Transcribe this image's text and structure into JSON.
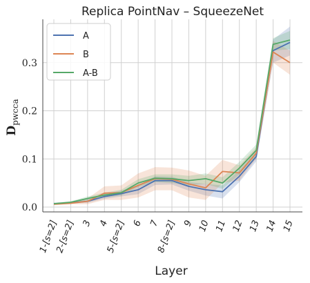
{
  "chart_data": {
    "type": "line",
    "title": "Replica PointNav – SqueezeNet",
    "xlabel": "Layer",
    "ylabel": "D",
    "ylabel_sub": "pwcca",
    "x_tick_labels": [
      "1-[s=2]",
      "2-[s=2]",
      "3",
      "4",
      "5-[s=2]",
      "6",
      "7",
      "8-[s=2]",
      "9",
      "10",
      "11",
      "12",
      "13",
      "14",
      "15"
    ],
    "x_positions": [
      1,
      2,
      3,
      4,
      5,
      6,
      7,
      8,
      9,
      10,
      11,
      12,
      13,
      14,
      15
    ],
    "ylim": [
      -0.01,
      0.39
    ],
    "yticks": [
      0.0,
      0.1,
      0.2,
      0.3
    ],
    "ytick_labels": [
      "0.0",
      "0.1",
      "0.2",
      "0.3"
    ],
    "grid": true,
    "legend_position": "top-left",
    "series": [
      {
        "name": "A",
        "color": "#4c72b0",
        "values": [
          0.007,
          0.009,
          0.012,
          0.022,
          0.028,
          0.036,
          0.055,
          0.055,
          0.043,
          0.036,
          0.032,
          0.064,
          0.105,
          0.325,
          0.342
        ],
        "lower": [
          0.005,
          0.007,
          0.009,
          0.017,
          0.022,
          0.027,
          0.046,
          0.047,
          0.034,
          0.024,
          0.018,
          0.052,
          0.095,
          0.3,
          0.315
        ],
        "upper": [
          0.009,
          0.011,
          0.016,
          0.028,
          0.034,
          0.045,
          0.064,
          0.063,
          0.052,
          0.048,
          0.045,
          0.077,
          0.116,
          0.348,
          0.375
        ]
      },
      {
        "name": "B",
        "color": "#dd8452",
        "values": [
          0.006,
          0.008,
          0.012,
          0.029,
          0.03,
          0.045,
          0.059,
          0.058,
          0.048,
          0.04,
          0.074,
          0.071,
          0.112,
          0.322,
          0.3
        ],
        "lower": [
          0.004,
          0.006,
          0.006,
          0.015,
          0.015,
          0.02,
          0.035,
          0.035,
          0.02,
          0.015,
          0.05,
          0.055,
          0.1,
          0.3,
          0.275
        ],
        "upper": [
          0.008,
          0.01,
          0.018,
          0.043,
          0.045,
          0.07,
          0.083,
          0.082,
          0.076,
          0.065,
          0.098,
          0.087,
          0.124,
          0.345,
          0.325
        ]
      },
      {
        "name": "A-B",
        "color": "#55a868",
        "values": [
          0.007,
          0.01,
          0.018,
          0.025,
          0.03,
          0.05,
          0.06,
          0.059,
          0.055,
          0.059,
          0.05,
          0.081,
          0.118,
          0.338,
          0.347
        ],
        "lower": [
          0.005,
          0.008,
          0.014,
          0.02,
          0.024,
          0.042,
          0.052,
          0.05,
          0.045,
          0.048,
          0.038,
          0.068,
          0.106,
          0.325,
          0.328
        ],
        "upper": [
          0.009,
          0.012,
          0.022,
          0.03,
          0.036,
          0.058,
          0.068,
          0.068,
          0.065,
          0.07,
          0.062,
          0.094,
          0.13,
          0.351,
          0.366
        ]
      }
    ]
  }
}
